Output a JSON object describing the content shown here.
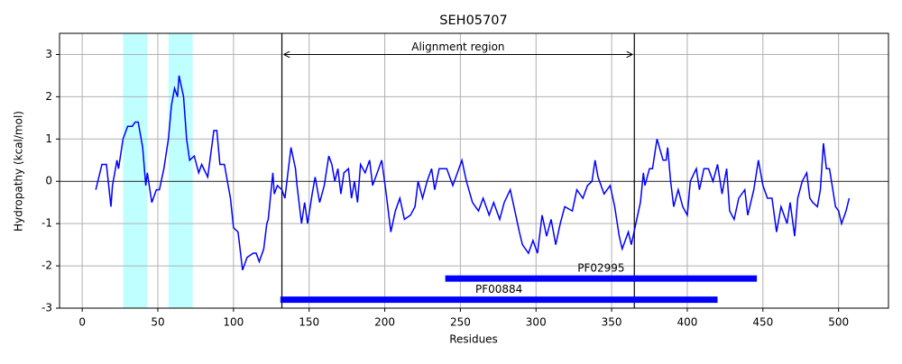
{
  "chart_data": {
    "type": "line",
    "title": "SEH05707",
    "xlabel": "Residues",
    "ylabel": "Hydropathy (kcal/mol)",
    "color": "#0000ff",
    "x": [
      9,
      13,
      16,
      19,
      20,
      23,
      24,
      27,
      30,
      33,
      35,
      37,
      40,
      42,
      43,
      46,
      49,
      51,
      54,
      57,
      59,
      61,
      63,
      64,
      67,
      69,
      71,
      74,
      77,
      79,
      83,
      87,
      89,
      91,
      94,
      96,
      98,
      100,
      103,
      104,
      106,
      109,
      113,
      115,
      117,
      120,
      122,
      123,
      126,
      127,
      129,
      132,
      134,
      136,
      138,
      141,
      142,
      145,
      147,
      149,
      152,
      154,
      157,
      160,
      163,
      165,
      167,
      169,
      171,
      173,
      176,
      178,
      180,
      182,
      184,
      187,
      190,
      192,
      195,
      198,
      201,
      203,
      204,
      207,
      210,
      213,
      217,
      220,
      222,
      225,
      228,
      231,
      233,
      236,
      241,
      245,
      247,
      251,
      254,
      258,
      262,
      265,
      269,
      272,
      276,
      279,
      283,
      286,
      289,
      291,
      295,
      298,
      301,
      304,
      307,
      310,
      313,
      316,
      319,
      324,
      327,
      331,
      334,
      337,
      339,
      341,
      345,
      349,
      352,
      355,
      357,
      361,
      363,
      366,
      369,
      371,
      372,
      375,
      377,
      380,
      384,
      386,
      387,
      389,
      391,
      394,
      397,
      400,
      402,
      406,
      408,
      411,
      414,
      417,
      420,
      423,
      426,
      428,
      431,
      434,
      438,
      440,
      444,
      447,
      450,
      453,
      456,
      459,
      462,
      466,
      468,
      471,
      473,
      476,
      479,
      481,
      483,
      486,
      488,
      490,
      492,
      494,
      498,
      500,
      502,
      505,
      507
    ],
    "values": [
      -0.2,
      0.4,
      0.4,
      -0.6,
      -0.1,
      0.5,
      0.3,
      1.0,
      1.3,
      1.3,
      1.4,
      1.4,
      0.8,
      -0.1,
      0.2,
      -0.5,
      -0.2,
      -0.2,
      0.3,
      1.0,
      1.8,
      2.2,
      2.0,
      2.5,
      2.0,
      1.0,
      0.5,
      0.6,
      0.2,
      0.4,
      0.1,
      1.2,
      1.2,
      0.4,
      0.4,
      0.0,
      -0.4,
      -1.1,
      -1.2,
      -1.5,
      -2.1,
      -1.8,
      -1.7,
      -1.7,
      -1.9,
      -1.6,
      -1.0,
      -0.9,
      0.2,
      -0.3,
      -0.1,
      -0.2,
      -0.4,
      0.2,
      0.8,
      0.3,
      -0.1,
      -1.0,
      -0.5,
      -1.0,
      -0.3,
      0.1,
      -0.5,
      -0.1,
      0.6,
      0.4,
      0.0,
      0.3,
      -0.3,
      0.2,
      0.3,
      -0.4,
      0.0,
      -0.5,
      0.4,
      0.2,
      0.5,
      -0.1,
      0.2,
      0.5,
      -0.3,
      -0.9,
      -1.2,
      -0.7,
      -0.4,
      -0.9,
      -0.8,
      -0.6,
      0.0,
      -0.4,
      0.0,
      0.3,
      -0.2,
      0.3,
      0.3,
      -0.1,
      0.1,
      0.5,
      0.0,
      -0.5,
      -0.7,
      -0.4,
      -0.8,
      -0.5,
      -0.9,
      -0.5,
      -0.2,
      -0.7,
      -1.2,
      -1.5,
      -1.7,
      -1.4,
      -1.7,
      -0.8,
      -1.3,
      -0.9,
      -1.5,
      -1.0,
      -0.6,
      -0.7,
      -0.2,
      -0.4,
      -0.1,
      0.0,
      0.5,
      0.1,
      -0.3,
      -0.1,
      -0.6,
      -1.3,
      -1.6,
      -1.2,
      -1.5,
      -1.0,
      -0.5,
      0.2,
      -0.1,
      0.3,
      0.3,
      1.0,
      0.5,
      0.5,
      0.8,
      0.0,
      -0.6,
      -0.2,
      -0.6,
      -0.8,
      0.0,
      0.3,
      -0.2,
      0.3,
      0.3,
      0.0,
      0.4,
      -0.3,
      0.3,
      -0.7,
      -0.9,
      -0.4,
      -0.2,
      -0.8,
      -0.2,
      0.5,
      -0.1,
      -0.4,
      -0.4,
      -1.2,
      -0.6,
      -1.0,
      -0.5,
      -1.3,
      -0.4,
      0.0,
      0.2,
      -0.4,
      -0.5,
      -0.6,
      -0.2,
      0.9,
      0.3,
      0.3,
      -0.6,
      -0.7,
      -1.0,
      -0.7,
      -0.4
    ],
    "xlim": [
      -15,
      533
    ],
    "ylim": [
      -3,
      3.5
    ],
    "xticks": [
      0,
      50,
      100,
      150,
      200,
      250,
      300,
      350,
      400,
      450,
      500
    ],
    "yticks": [
      -3,
      -2,
      -1,
      0,
      1,
      2,
      3
    ],
    "grid": true,
    "hline": 0,
    "spans": [
      {
        "start": 27,
        "end": 43
      },
      {
        "start": 57,
        "end": 73
      }
    ],
    "span_color": "#bfffff",
    "alignment": {
      "label": "Alignment region",
      "start": 132,
      "end": 365,
      "y": 3
    },
    "domains": [
      {
        "name": "PF02995",
        "start": 240,
        "end": 446,
        "y": -2.3
      },
      {
        "name": "PF00884",
        "start": 131,
        "end": 420,
        "y": -2.8
      }
    ],
    "domain_color": "#0000ff"
  }
}
